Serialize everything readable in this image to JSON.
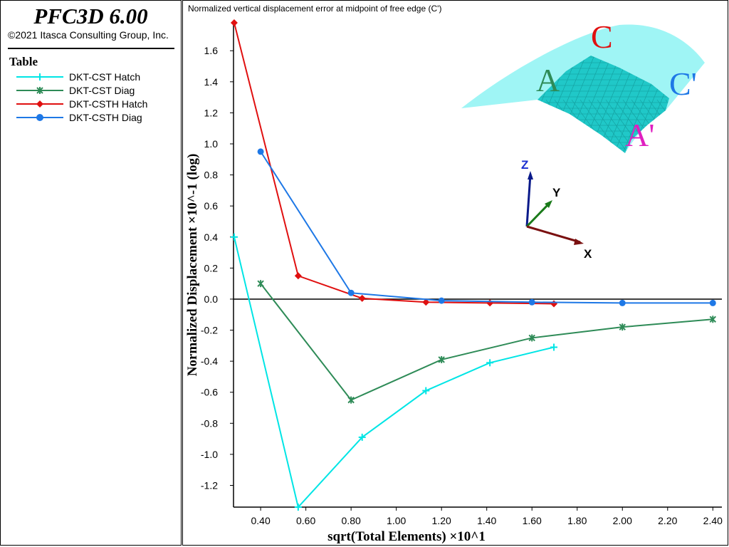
{
  "app": {
    "title": "PFC3D 6.00",
    "copyright": "©2021 Itasca Consulting Group, Inc."
  },
  "legend": {
    "title": "Table",
    "items": [
      {
        "label": "DKT-CST Hatch",
        "color": "#00e5e5",
        "marker": "plus"
      },
      {
        "label": "DKT-CST Diag",
        "color": "#2e8b57",
        "marker": "asterisk"
      },
      {
        "label": "DKT-CSTH Hatch",
        "color": "#e01010",
        "marker": "diamond"
      },
      {
        "label": "DKT-CSTH Diag",
        "color": "#1e78e6",
        "marker": "circle"
      }
    ]
  },
  "chart_data": {
    "type": "line",
    "title": "Normalized vertical displacement error at midpoint of free edge (C')",
    "xlabel": "sqrt(Total Elements) ×10^1",
    "ylabel": "Normalized Displacement ×10^-1 (log)",
    "xlim": [
      0.28,
      2.44
    ],
    "ylim": [
      -1.34,
      1.78
    ],
    "xticks": [
      0.4,
      0.6,
      0.8,
      1.0,
      1.2,
      1.4,
      1.6,
      1.8,
      2.0,
      2.2,
      2.4
    ],
    "xtick_labels": [
      "0.40",
      "0.60",
      "0.80",
      "1.00",
      "1.20",
      "1.40",
      "1.60",
      "1.80",
      "2.00",
      "2.20",
      "2.40"
    ],
    "yticks": [
      -1.2,
      -1.0,
      -0.8,
      -0.6,
      -0.4,
      -0.2,
      0.0,
      0.2,
      0.4,
      0.6,
      0.8,
      1.0,
      1.2,
      1.4,
      1.6
    ],
    "ytick_labels": [
      "-1.2",
      "-1.0",
      "-0.8",
      "-0.6",
      "-0.4",
      "-0.2",
      "0.0",
      "0.2",
      "0.4",
      "0.6",
      "0.8",
      "1.0",
      "1.2",
      "1.4",
      "1.6"
    ],
    "zero_line": true,
    "grid": false,
    "series": [
      {
        "name": "DKT-CST Hatch",
        "color": "#00e5e5",
        "marker": "plus",
        "x": [
          0.283,
          0.566,
          0.849,
          1.131,
          1.414,
          1.697
        ],
        "y": [
          0.4,
          -1.34,
          -0.89,
          -0.59,
          -0.41,
          -0.31
        ]
      },
      {
        "name": "DKT-CST Diag",
        "color": "#2e8b57",
        "marker": "asterisk",
        "x": [
          0.4,
          0.8,
          1.2,
          1.6,
          2.0,
          2.4
        ],
        "y": [
          0.1,
          -0.65,
          -0.39,
          -0.25,
          -0.18,
          -0.13
        ]
      },
      {
        "name": "DKT-CSTH Hatch",
        "color": "#e01010",
        "marker": "diamond",
        "x": [
          0.283,
          0.566,
          0.849,
          1.131,
          1.414,
          1.697
        ],
        "y": [
          1.78,
          0.15,
          0.005,
          -0.02,
          -0.025,
          -0.03
        ]
      },
      {
        "name": "DKT-CSTH Diag",
        "color": "#1e78e6",
        "marker": "circle",
        "x": [
          0.4,
          0.8,
          1.2,
          1.6,
          2.0,
          2.4
        ],
        "y": [
          0.95,
          0.04,
          -0.01,
          -0.02,
          -0.025,
          -0.025
        ]
      }
    ],
    "inset": {
      "labels": {
        "A": "A",
        "C": "C",
        "C_prime": "C'",
        "A_prime": "A'"
      },
      "label_colors": {
        "A": "#2e8b57",
        "C": "#e01010",
        "C_prime": "#1e78e6",
        "A_prime": "#e020c0"
      },
      "surface_color": "#9ff5f5",
      "mesh_color": "#20c8c8",
      "axes": {
        "z": "Z",
        "y": "Y",
        "x": "X"
      },
      "axis_colors": {
        "z": "#0a1a8a",
        "y": "#1a7a1a",
        "x": "#7a1010"
      }
    }
  }
}
